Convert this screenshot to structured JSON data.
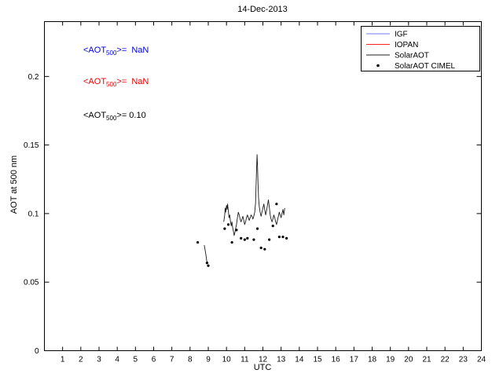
{
  "title": "14-Dec-2013",
  "annotations": [
    {
      "pre": "<AOT",
      "sub": "500",
      "post": ">=  NaN",
      "color": "#0000dd"
    },
    {
      "pre": "<AOT",
      "sub": "500",
      "post": ">=  NaN",
      "color": "#ee0000"
    },
    {
      "pre": "<AOT",
      "sub": "500",
      "post": ">= 0.10",
      "color": "#000000"
    }
  ],
  "legend": {
    "position": "top-right",
    "items": [
      {
        "label": "IGF",
        "color": "#7777ff",
        "marker": "line"
      },
      {
        "label": "IOPAN",
        "color": "#ff2222",
        "marker": "line"
      },
      {
        "label": "SolarAOT",
        "color": "#222222",
        "marker": "line"
      },
      {
        "label": "SolarAOT CIMEL",
        "color": "#000000",
        "marker": "dot"
      }
    ]
  },
  "chart_data": {
    "type": "line",
    "title": "14-Dec-2013",
    "xlabel": "UTC",
    "ylabel": "AOT at 500 nm",
    "xlim": [
      0,
      24
    ],
    "ylim": [
      0,
      0.24
    ],
    "grid": false,
    "xticks": [
      1,
      2,
      3,
      4,
      5,
      6,
      7,
      8,
      9,
      10,
      11,
      12,
      13,
      14,
      15,
      16,
      17,
      18,
      19,
      20,
      21,
      22,
      23,
      24
    ],
    "yticks": [
      0,
      0.05,
      0.1,
      0.15,
      0.2
    ],
    "ytick_labels": [
      "0",
      "0.05",
      "0.1",
      "0.15",
      "0.2"
    ],
    "mean_aot_500": {
      "IGF": "NaN",
      "IOPAN": "NaN",
      "SolarAOT": "0.10"
    },
    "series": [
      {
        "name": "IGF",
        "type": "line",
        "color": "#7777ff",
        "segments": []
      },
      {
        "name": "IOPAN",
        "type": "line",
        "color": "#ff2222",
        "segments": []
      },
      {
        "name": "SolarAOT",
        "type": "line",
        "color": "#1a1a1a",
        "segments": [
          [
            [
              8.78,
              0.077
            ],
            [
              8.83,
              0.073
            ],
            [
              8.87,
              0.07
            ],
            [
              8.91,
              0.066
            ],
            [
              8.95,
              0.064
            ]
          ],
          [
            [
              9.85,
              0.094
            ],
            [
              9.9,
              0.099
            ],
            [
              9.93,
              0.104
            ],
            [
              9.96,
              0.101
            ],
            [
              10.0,
              0.106
            ],
            [
              10.03,
              0.103
            ],
            [
              10.06,
              0.107
            ],
            [
              10.1,
              0.102
            ],
            [
              10.14,
              0.097
            ],
            [
              10.18,
              0.099
            ],
            [
              10.22,
              0.094
            ],
            [
              10.26,
              0.091
            ],
            [
              10.3,
              0.094
            ],
            [
              10.34,
              0.09
            ],
            [
              10.38,
              0.087
            ],
            [
              10.42,
              0.084
            ],
            [
              10.46,
              0.086
            ],
            [
              10.5,
              0.089
            ],
            [
              10.55,
              0.092
            ],
            [
              10.6,
              0.097
            ],
            [
              10.65,
              0.101
            ],
            [
              10.7,
              0.099
            ],
            [
              10.75,
              0.096
            ],
            [
              10.8,
              0.094
            ],
            [
              10.85,
              0.096
            ],
            [
              10.9,
              0.098
            ],
            [
              10.95,
              0.095
            ],
            [
              11.0,
              0.092
            ],
            [
              11.05,
              0.094
            ],
            [
              11.1,
              0.097
            ],
            [
              11.15,
              0.099
            ],
            [
              11.2,
              0.097
            ],
            [
              11.25,
              0.095
            ],
            [
              11.3,
              0.097
            ],
            [
              11.35,
              0.099
            ],
            [
              11.4,
              0.098
            ],
            [
              11.45,
              0.096
            ],
            [
              11.5,
              0.098
            ],
            [
              11.55,
              0.101
            ],
            [
              11.6,
              0.108
            ],
            [
              11.63,
              0.122
            ],
            [
              11.66,
              0.135
            ],
            [
              11.68,
              0.143
            ],
            [
              11.7,
              0.136
            ],
            [
              11.73,
              0.124
            ],
            [
              11.76,
              0.112
            ],
            [
              11.8,
              0.105
            ],
            [
              11.85,
              0.101
            ],
            [
              11.9,
              0.098
            ],
            [
              11.95,
              0.101
            ],
            [
              12.0,
              0.104
            ],
            [
              12.05,
              0.107
            ],
            [
              12.1,
              0.103
            ],
            [
              12.15,
              0.099
            ],
            [
              12.2,
              0.102
            ],
            [
              12.25,
              0.106
            ],
            [
              12.3,
              0.11
            ],
            [
              12.35,
              0.105
            ],
            [
              12.4,
              0.099
            ],
            [
              12.45,
              0.096
            ],
            [
              12.5,
              0.094
            ],
            [
              12.55,
              0.096
            ],
            [
              12.6,
              0.099
            ],
            [
              12.65,
              0.097
            ],
            [
              12.7,
              0.094
            ],
            [
              12.75,
              0.092
            ],
            [
              12.8,
              0.095
            ],
            [
              12.85,
              0.098
            ],
            [
              12.9,
              0.101
            ],
            [
              12.95,
              0.099
            ],
            [
              13.0,
              0.097
            ],
            [
              13.05,
              0.1
            ],
            [
              13.1,
              0.103
            ],
            [
              13.15,
              0.099
            ],
            [
              13.2,
              0.104
            ]
          ]
        ]
      },
      {
        "name": "SolarAOT CIMEL",
        "type": "scatter",
        "color": "#000000",
        "points": [
          [
            8.42,
            0.079
          ],
          [
            8.93,
            0.064
          ],
          [
            9.0,
            0.062
          ],
          [
            9.9,
            0.089
          ],
          [
            10.1,
            0.092
          ],
          [
            10.3,
            0.079
          ],
          [
            10.55,
            0.088
          ],
          [
            10.8,
            0.082
          ],
          [
            11.0,
            0.081
          ],
          [
            11.15,
            0.082
          ],
          [
            11.5,
            0.081
          ],
          [
            11.7,
            0.089
          ],
          [
            11.9,
            0.075
          ],
          [
            12.1,
            0.074
          ],
          [
            12.35,
            0.081
          ],
          [
            12.55,
            0.091
          ],
          [
            12.75,
            0.107
          ],
          [
            12.9,
            0.083
          ],
          [
            13.1,
            0.083
          ],
          [
            13.3,
            0.082
          ]
        ]
      }
    ]
  }
}
